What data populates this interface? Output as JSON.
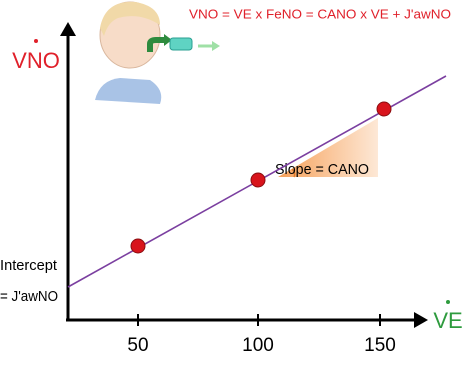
{
  "header": {
    "formula": "VNO = VE x FeNO = CANO x VE + J'awNO"
  },
  "axes": {
    "y_label": "VNO",
    "x_label": "VE",
    "x_ticks": [
      "50",
      "100",
      "150"
    ]
  },
  "annotations": {
    "slope": "Slope = CANO",
    "intercept_line1": "Intercept",
    "intercept_line2": "= J'awNO"
  }
}
